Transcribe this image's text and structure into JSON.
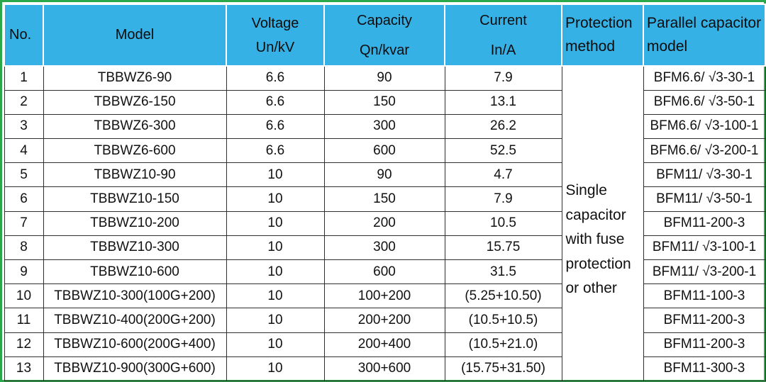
{
  "headers": {
    "no": "No.",
    "model": "Model",
    "voltage_line1": "Voltage",
    "voltage_line2": "Un/kV",
    "capacity_line1": "Capacity",
    "capacity_line2": "Qn/kvar",
    "current_line1": "Current",
    "current_line2": "In/A",
    "protection_line1": "Protection",
    "protection_line2": "method",
    "parallel_line1": "Parallel capacitor",
    "parallel_line2": "model"
  },
  "protection": {
    "line1": "Single",
    "line2": "capacitor",
    "line3": "with fuse",
    "line4": "protection",
    "line5": "or other"
  },
  "rows": [
    {
      "no": "1",
      "model": "TBBWZ6-90",
      "voltage": "6.6",
      "capacity": "90",
      "current": "7.9",
      "parallel": "BFM6.6/ √3-30-1"
    },
    {
      "no": "2",
      "model": "TBBWZ6-150",
      "voltage": "6.6",
      "capacity": "150",
      "current": "13.1",
      "parallel": "BFM6.6/ √3-50-1"
    },
    {
      "no": "3",
      "model": "TBBWZ6-300",
      "voltage": "6.6",
      "capacity": "300",
      "current": "26.2",
      "parallel": "BFM6.6/ √3-100-1"
    },
    {
      "no": "4",
      "model": "TBBWZ6-600",
      "voltage": "6.6",
      "capacity": "600",
      "current": "52.5",
      "parallel": "BFM6.6/ √3-200-1"
    },
    {
      "no": "5",
      "model": "TBBWZ10-90",
      "voltage": "10",
      "capacity": "90",
      "current": "4.7",
      "parallel": "BFM11/ √3-30-1"
    },
    {
      "no": "6",
      "model": "TBBWZ10-150",
      "voltage": "10",
      "capacity": "150",
      "current": "7.9",
      "parallel": "BFM11/ √3-50-1"
    },
    {
      "no": "7",
      "model": "TBBWZ10-200",
      "voltage": "10",
      "capacity": "200",
      "current": "10.5",
      "parallel": "BFM11-200-3"
    },
    {
      "no": "8",
      "model": "TBBWZ10-300",
      "voltage": "10",
      "capacity": "300",
      "current": "15.75",
      "parallel": "BFM11/ √3-100-1"
    },
    {
      "no": "9",
      "model": "TBBWZ10-600",
      "voltage": "10",
      "capacity": "600",
      "current": "31.5",
      "parallel": "BFM11/ √3-200-1"
    },
    {
      "no": "10",
      "model": "TBBWZ10-300(100G+200)",
      "voltage": "10",
      "capacity": "100+200",
      "current": "(5.25+10.50)",
      "parallel": "BFM11-100-3"
    },
    {
      "no": "11",
      "model": "TBBWZ10-400(200G+200)",
      "voltage": "10",
      "capacity": "200+200",
      "current": "(10.5+10.5)",
      "parallel": "BFM11-200-3"
    },
    {
      "no": "12",
      "model": "TBBWZ10-600(200G+400)",
      "voltage": "10",
      "capacity": "200+400",
      "current": "(10.5+21.0)",
      "parallel": "BFM11-200-3"
    },
    {
      "no": "13",
      "model": "TBBWZ10-900(300G+600)",
      "voltage": "10",
      "capacity": "300+600",
      "current": "(15.75+31.50)",
      "parallel": "BFM11-300-3"
    }
  ],
  "colors": {
    "header_bg": "#36b1e6",
    "frame_border": "#2ba84a"
  }
}
